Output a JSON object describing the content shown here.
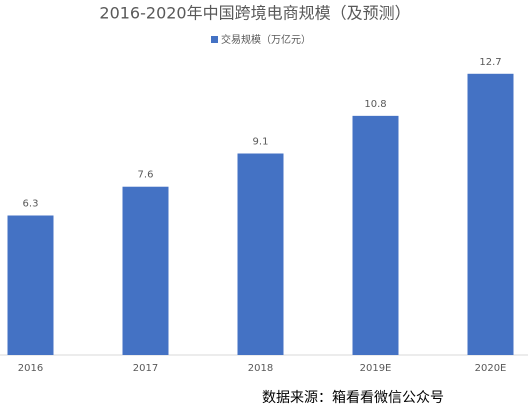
{
  "chart_data": {
    "type": "bar",
    "title": "2016-2020年中国跨境电商规模（及预测）",
    "categories": [
      "2016",
      "2017",
      "2018",
      "2019E",
      "2020E"
    ],
    "series": [
      {
        "name": "交易规模（万亿元）",
        "color": "#4472c4",
        "values": [
          6.3,
          7.6,
          9.1,
          10.8,
          12.7
        ]
      }
    ],
    "ylim": [
      0,
      14
    ],
    "source": "数据来源：箱看看微信公众号"
  }
}
